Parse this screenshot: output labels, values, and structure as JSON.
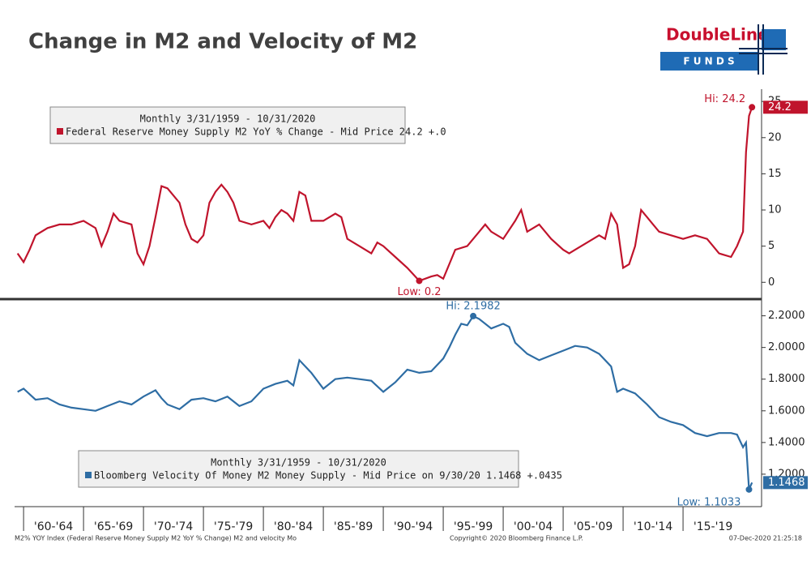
{
  "header": {
    "title": "Change in M2 and Velocity of M2"
  },
  "logo": {
    "name": "DoubleLine",
    "tag": "F U N D S"
  },
  "footer": {
    "left": "M2% YOY Index (Federal Reserve Money Supply M2 YoY % Change) M2 and velocity Mo",
    "center": "Copyright© 2020 Bloomberg Finance L.P.",
    "right": "07-Dec-2020 21:25:18"
  },
  "chart_data": [
    {
      "type": "line",
      "legend_title": "Monthly 3/31/1959 - 10/31/2020",
      "xlim": [
        1959.25,
        2021.55
      ],
      "ylim": [
        -2.1,
        26.7
      ],
      "yticks": [
        0,
        5,
        10,
        15,
        20,
        25
      ],
      "x": [
        1959.5,
        1960,
        1960.5,
        1961,
        1962,
        1963,
        1964,
        1965,
        1966,
        1966.5,
        1967,
        1967.5,
        1968,
        1969,
        1969.5,
        1970,
        1970.5,
        1971,
        1971.5,
        1972,
        1973,
        1973.5,
        1974,
        1974.5,
        1975,
        1975.5,
        1976,
        1976.5,
        1977,
        1977.5,
        1978,
        1979,
        1980,
        1980.5,
        1981,
        1981.5,
        1982,
        1982.5,
        1983,
        1983.5,
        1984,
        1985,
        1986,
        1986.5,
        1987,
        1988,
        1989,
        1989.5,
        1990,
        1991,
        1992,
        1993,
        1994,
        1994.5,
        1995,
        1995.5,
        1996,
        1997,
        1998,
        1998.5,
        1999,
        2000,
        2001,
        2001.5,
        2002,
        2003,
        2003.5,
        2004,
        2005,
        2005.5,
        2006,
        2007,
        2008,
        2008.5,
        2009,
        2009.5,
        2010,
        2010.5,
        2011,
        2011.5,
        2012,
        2012.5,
        2013,
        2014,
        2015,
        2016,
        2017,
        2017.5,
        2018,
        2019,
        2019.5,
        2020,
        2020.25,
        2020.5,
        2020.75
      ],
      "series": [
        {
          "name": "Federal Reserve Money Supply M2 YoY % Change - Mid Price 24.2 +.0",
          "color": "#c0142c",
          "values": [
            4,
            2.8,
            4.5,
            6.5,
            7.5,
            8,
            8,
            8.5,
            7.5,
            5,
            7,
            9.5,
            8.5,
            8,
            4,
            2.5,
            5,
            9,
            13.3,
            13,
            11,
            8,
            6,
            5.5,
            6.5,
            11,
            12.5,
            13.5,
            12.5,
            11,
            8.5,
            8,
            8.5,
            7.5,
            9,
            10,
            9.5,
            8.5,
            12.5,
            12,
            8.5,
            8.5,
            9.5,
            9,
            6,
            5,
            4,
            5.5,
            5,
            3.5,
            2,
            0.2,
            0.8,
            1,
            0.5,
            2.5,
            4.5,
            5,
            7,
            8,
            7,
            6,
            8.5,
            10,
            7,
            8,
            7,
            6,
            4.5,
            4,
            4.5,
            5.5,
            6.5,
            6,
            9.5,
            8,
            2,
            2.5,
            5,
            10,
            9,
            8,
            7,
            6.5,
            6,
            6.5,
            6,
            5,
            4,
            3.5,
            5,
            7,
            18,
            23,
            24.2
          ]
        }
      ],
      "annotations": [
        {
          "text": "Hi: 24.2",
          "x": 2020.75,
          "y": 24.2
        },
        {
          "text": "Low: 0.2",
          "x": 1993,
          "y": 0.2
        }
      ],
      "last_label": "24.2"
    },
    {
      "type": "line",
      "legend_title": "Monthly 3/31/1959 - 10/31/2020",
      "xlim": [
        1959.25,
        2021.55
      ],
      "ylim": [
        0.995,
        2.29
      ],
      "yticks": [
        {
          "value": 1.2,
          "label": "1.2000"
        },
        {
          "value": 1.4,
          "label": "1.4000"
        },
        {
          "value": 1.6,
          "label": "1.6000"
        },
        {
          "value": 1.8,
          "label": "1.8000"
        },
        {
          "value": 2.0,
          "label": "2.0000"
        },
        {
          "value": 2.2,
          "label": "2.2000"
        }
      ],
      "xticks": [
        {
          "value": 1962.5,
          "label": "'60-'64"
        },
        {
          "value": 1967.5,
          "label": "'65-'69"
        },
        {
          "value": 1972.5,
          "label": "'70-'74"
        },
        {
          "value": 1977.5,
          "label": "'75-'79"
        },
        {
          "value": 1982.5,
          "label": "'80-'84"
        },
        {
          "value": 1987.5,
          "label": "'85-'89"
        },
        {
          "value": 1992.5,
          "label": "'90-'94"
        },
        {
          "value": 1997.5,
          "label": "'95-'99"
        },
        {
          "value": 2002.5,
          "label": "'00-'04"
        },
        {
          "value": 2007.5,
          "label": "'05-'09"
        },
        {
          "value": 2012.5,
          "label": "'10-'14"
        },
        {
          "value": 2017.5,
          "label": "'15-'19"
        }
      ],
      "x": [
        1959.5,
        1960,
        1961,
        1962,
        1963,
        1964,
        1965,
        1966,
        1967,
        1968,
        1969,
        1970,
        1971,
        1971.5,
        1972,
        1973,
        1974,
        1975,
        1976,
        1977,
        1978,
        1979,
        1980,
        1981,
        1982,
        1982.5,
        1983,
        1983.5,
        1984,
        1985,
        1986,
        1987,
        1988,
        1989,
        1990,
        1991,
        1992,
        1993,
        1994,
        1995,
        1995.5,
        1996,
        1996.5,
        1997,
        1997.5,
        1998,
        1999,
        2000,
        2000.5,
        2001,
        2002,
        2003,
        2004,
        2005,
        2006,
        2007,
        2008,
        2009,
        2009.5,
        2010,
        2011,
        2012,
        2013,
        2014,
        2015,
        2016,
        2017,
        2018,
        2019,
        2019.5,
        2020,
        2020.25,
        2020.5,
        2020.75
      ],
      "series": [
        {
          "name": "Bloomberg Velocity Of Money M2 Money Supply - Mid Price on 9/30/20 1.1468 +.0435",
          "color": "#2e6da4",
          "values": [
            1.72,
            1.74,
            1.67,
            1.68,
            1.64,
            1.62,
            1.61,
            1.6,
            1.63,
            1.66,
            1.64,
            1.69,
            1.73,
            1.68,
            1.64,
            1.61,
            1.67,
            1.68,
            1.66,
            1.69,
            1.63,
            1.66,
            1.74,
            1.77,
            1.79,
            1.76,
            1.92,
            1.88,
            1.84,
            1.74,
            1.8,
            1.81,
            1.8,
            1.79,
            1.72,
            1.78,
            1.86,
            1.84,
            1.85,
            1.93,
            2.0,
            2.08,
            2.15,
            2.14,
            2.1982,
            2.18,
            2.12,
            2.15,
            2.13,
            2.03,
            1.96,
            1.92,
            1.95,
            1.98,
            2.01,
            2.0,
            1.96,
            1.88,
            1.72,
            1.74,
            1.71,
            1.64,
            1.56,
            1.53,
            1.51,
            1.46,
            1.44,
            1.46,
            1.46,
            1.45,
            1.37,
            1.4,
            1.1033,
            1.1468
          ]
        }
      ],
      "annotations": [
        {
          "text": "Hi: 2.1982",
          "x": 1997.5,
          "y": 2.1982
        },
        {
          "text": "Low: 1.1033",
          "x": 2020.5,
          "y": 1.1033
        }
      ],
      "last_label": "1.1468"
    }
  ]
}
